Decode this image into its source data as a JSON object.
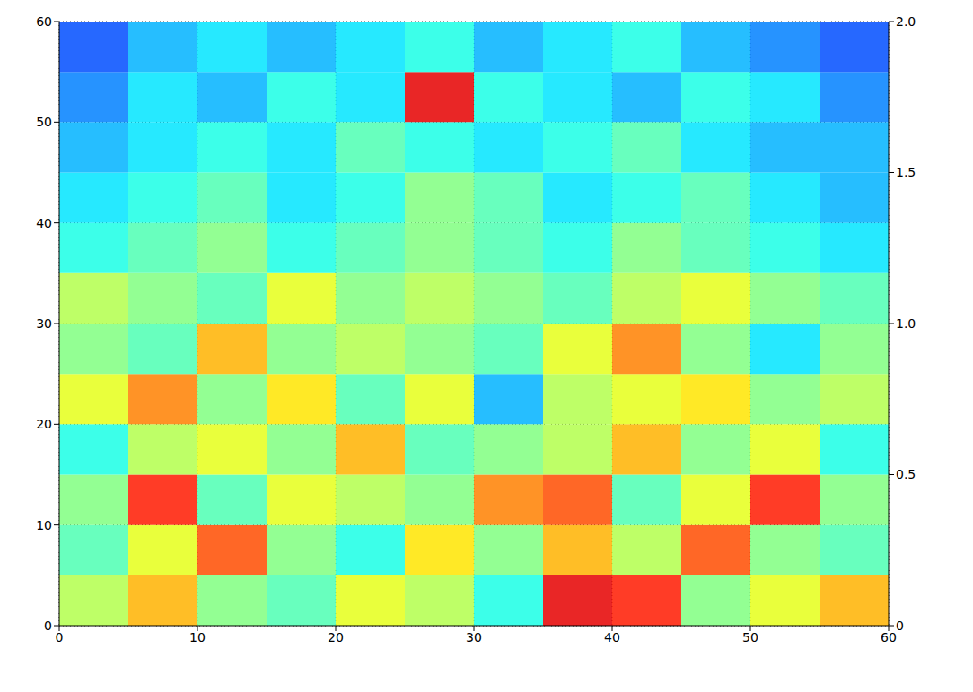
{
  "chart_data": {
    "type": "heatmap",
    "x_bins": [
      0,
      5,
      10,
      15,
      20,
      25,
      30,
      35,
      40,
      45,
      50,
      55,
      60
    ],
    "y_bins": [
      0,
      5,
      10,
      15,
      20,
      25,
      30,
      35,
      40,
      45,
      50,
      55,
      60
    ],
    "cells": [
      [
        0.55,
        0.7,
        0.5,
        0.45,
        0.6,
        0.55,
        0.4,
        0.9,
        0.85,
        0.5,
        0.6,
        0.7
      ],
      [
        0.45,
        0.6,
        0.8,
        0.5,
        0.4,
        0.65,
        0.5,
        0.7,
        0.55,
        0.8,
        0.5,
        0.45
      ],
      [
        0.5,
        0.85,
        0.45,
        0.6,
        0.55,
        0.5,
        0.75,
        0.8,
        0.45,
        0.6,
        0.85,
        0.5
      ],
      [
        0.4,
        0.55,
        0.6,
        0.5,
        0.7,
        0.45,
        0.5,
        0.55,
        0.7,
        0.5,
        0.6,
        0.4
      ],
      [
        0.6,
        0.75,
        0.5,
        0.65,
        0.45,
        0.6,
        0.3,
        0.55,
        0.6,
        0.65,
        0.5,
        0.55
      ],
      [
        0.5,
        0.45,
        0.7,
        0.5,
        0.55,
        0.5,
        0.45,
        0.6,
        0.75,
        0.5,
        0.35,
        0.5
      ],
      [
        0.55,
        0.5,
        0.45,
        0.6,
        0.5,
        0.55,
        0.5,
        0.45,
        0.55,
        0.6,
        0.5,
        0.45
      ],
      [
        0.4,
        0.45,
        0.5,
        0.4,
        0.45,
        0.5,
        0.45,
        0.4,
        0.5,
        0.45,
        0.4,
        0.35
      ],
      [
        0.35,
        0.4,
        0.45,
        0.35,
        0.4,
        0.5,
        0.45,
        0.35,
        0.4,
        0.45,
        0.35,
        0.3
      ],
      [
        0.3,
        0.35,
        0.4,
        0.35,
        0.45,
        0.4,
        0.35,
        0.4,
        0.45,
        0.35,
        0.3,
        0.3
      ],
      [
        0.25,
        0.35,
        0.3,
        0.4,
        0.35,
        0.9,
        0.4,
        0.35,
        0.3,
        0.4,
        0.35,
        0.25
      ],
      [
        0.2,
        0.3,
        0.35,
        0.3,
        0.35,
        0.4,
        0.3,
        0.35,
        0.4,
        0.3,
        0.25,
        0.2
      ]
    ],
    "clim": [
      0,
      1
    ],
    "xlim": [
      0,
      60
    ],
    "xticks": [
      0,
      10,
      20,
      30,
      40,
      50,
      60
    ],
    "ylim": [
      0,
      60
    ],
    "yticks": [
      0,
      10,
      20,
      30,
      40,
      50,
      60
    ],
    "zlim": [
      0,
      2
    ],
    "zticks": [
      0,
      0.5,
      {
        "value": 1,
        "label": "1.0"
      },
      1.5,
      {
        "value": 2,
        "label": "2.0"
      }
    ],
    "grid": true
  }
}
